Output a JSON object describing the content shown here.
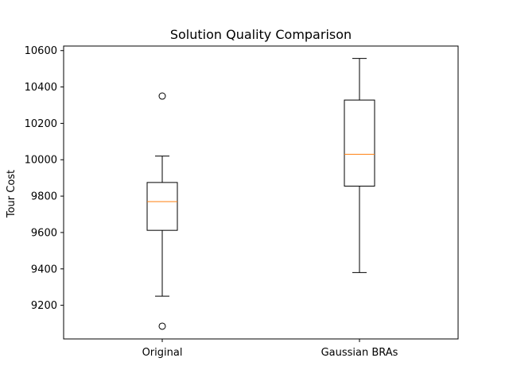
{
  "chart_data": {
    "type": "box",
    "title": "Solution Quality Comparison",
    "xlabel": "",
    "ylabel": "Tour Cost",
    "ylim": [
      9015,
      10625
    ],
    "yticks": [
      9200,
      9400,
      9600,
      9800,
      10000,
      10200,
      10400,
      10600
    ],
    "grid": false,
    "categories": [
      "Original",
      "Gaussian BRAs"
    ],
    "series": [
      {
        "whisker_low": 9250,
        "q1": 9612,
        "median": 9770,
        "q3": 9875,
        "whisker_high": 10020,
        "outliers": [
          10350,
          9085
        ]
      },
      {
        "whisker_low": 9380,
        "q1": 9855,
        "median": 10030,
        "q3": 10328,
        "whisker_high": 10557,
        "outliers": []
      }
    ],
    "colors": {
      "box": "#000000",
      "median": "#ff7f0e",
      "whisker": "#000000",
      "outlier": "#000000"
    }
  }
}
